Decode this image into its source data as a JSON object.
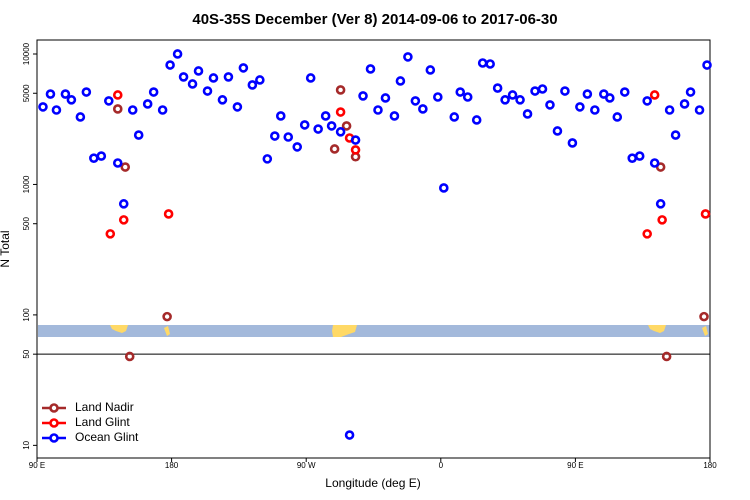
{
  "chart_data": {
    "type": "scatter",
    "title": "40S-35S December (Ver 8)   2014-09-06 to 2017-06-30",
    "x_label": "Longitude (deg E)",
    "y_label": "N Total",
    "log_y": true,
    "xlim": [
      90,
      540
    ],
    "ylim": [
      8,
      12800
    ],
    "xticks": [
      {
        "value": 90,
        "label": "90 E"
      },
      {
        "value": 180,
        "label": "180"
      },
      {
        "value": 270,
        "label": "90 W"
      },
      {
        "value": 360,
        "label": "0"
      },
      {
        "value": 450,
        "label": "90 E"
      },
      {
        "value": 540,
        "label": "180"
      }
    ],
    "yticks": [
      10,
      50,
      100,
      500,
      1000,
      5000,
      10000
    ],
    "hline": 50,
    "legend_position": "lower left",
    "series": [
      {
        "name": "Land Nadir",
        "color": "#a52a2a",
        "x": [
          144,
          149,
          152,
          177,
          293,
          297,
          289,
          303,
          507,
          511,
          536
        ],
        "values": [
          3790,
          1360,
          48,
          97,
          5300,
          2810,
          1870,
          1630,
          1360,
          48,
          97
        ]
      },
      {
        "name": "Land Glint",
        "color": "#ff0000",
        "x": [
          139,
          144,
          148,
          178,
          293,
          299,
          303,
          498,
          503,
          508,
          537
        ],
        "values": [
          418,
          4850,
          535,
          594,
          3590,
          2270,
          1840,
          418,
          4850,
          535,
          594
        ]
      },
      {
        "name": "Ocean Glint",
        "color": "#0000ff",
        "x": [
          94,
          99,
          103,
          109,
          113,
          119,
          123,
          128,
          133,
          138,
          144,
          148,
          154,
          158,
          164,
          168,
          174,
          179,
          184,
          188,
          194,
          198,
          204,
          208,
          214,
          218,
          224,
          228,
          234,
          239,
          244,
          249,
          253,
          258,
          264,
          269,
          273,
          278,
          283,
          287,
          293,
          299,
          303,
          308,
          313,
          318,
          323,
          329,
          333,
          338,
          343,
          348,
          353,
          358,
          362,
          369,
          373,
          378,
          384,
          388,
          393,
          398,
          403,
          408,
          413,
          418,
          423,
          428,
          433,
          438,
          443,
          448,
          453,
          458,
          463,
          469,
          473,
          478,
          483,
          488,
          493,
          498,
          503,
          507,
          513,
          517,
          523,
          527,
          533,
          538
        ],
        "values": [
          3930,
          4930,
          3720,
          4930,
          4450,
          3290,
          5110,
          1590,
          1650,
          4370,
          1460,
          710,
          3720,
          2390,
          4140,
          5110,
          3720,
          8230,
          10000,
          6670,
          5890,
          7410,
          5200,
          6550,
          4450,
          6670,
          3930,
          7820,
          5790,
          6320,
          1570,
          2350,
          3350,
          2310,
          1940,
          2860,
          6550,
          2660,
          3350,
          2810,
          2530,
          12,
          2190,
          4770,
          7680,
          3720,
          4600,
          3350,
          6210,
          9500,
          4370,
          3790,
          7540,
          4680,
          940,
          3290,
          5110,
          4680,
          3120,
          8530,
          8380,
          5480,
          4450,
          4850,
          4450,
          3470,
          5200,
          5390,
          4070,
          2570,
          5200,
          2080,
          3930,
          4930,
          3720,
          4930,
          4600,
          3290,
          5110,
          1590,
          1650,
          4370,
          1460,
          710,
          3720,
          2390,
          4140,
          5110,
          3720,
          8230
        ]
      }
    ]
  }
}
